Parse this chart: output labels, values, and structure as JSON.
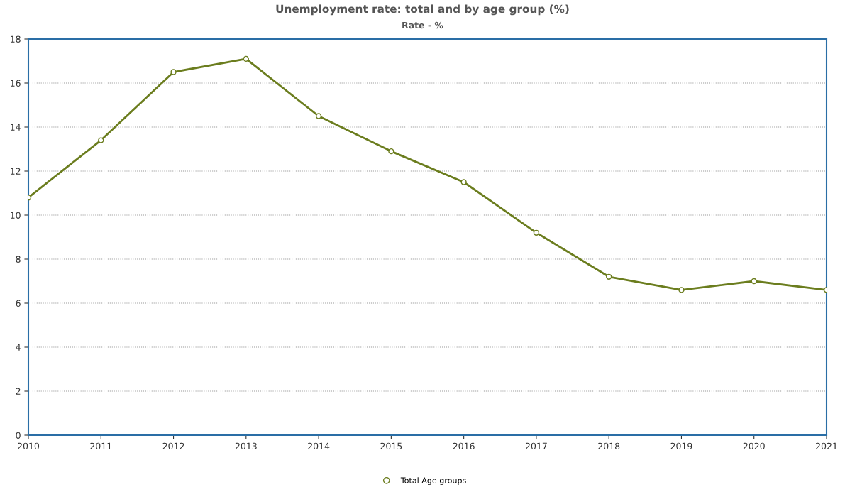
{
  "chart_data": {
    "type": "line",
    "title": "Unemployment rate: total and by age group (%)",
    "subtitle": "Rate - %",
    "categories": [
      "2010",
      "2011",
      "2012",
      "2013",
      "2014",
      "2015",
      "2016",
      "2017",
      "2018",
      "2019",
      "2020",
      "2021"
    ],
    "series": [
      {
        "name": "Total Age groups",
        "color": "#6b7d1e",
        "values": [
          10.8,
          13.4,
          16.5,
          17.1,
          14.5,
          12.9,
          11.5,
          9.2,
          7.2,
          6.6,
          7.0,
          6.6
        ]
      }
    ],
    "ylim": [
      0,
      18
    ],
    "yticks": [
      0,
      2,
      4,
      6,
      8,
      10,
      12,
      14,
      16,
      18
    ],
    "grid": "y",
    "legend": "bottom",
    "marker": "circle",
    "line_style": "solid"
  }
}
